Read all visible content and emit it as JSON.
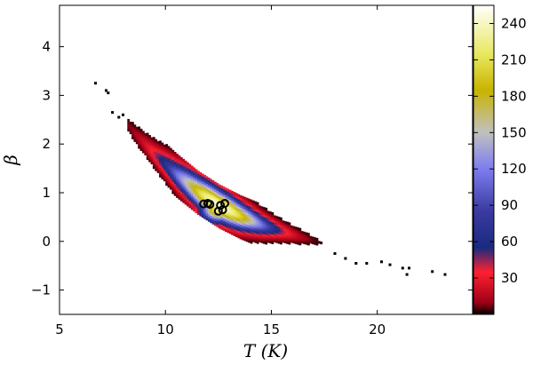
{
  "chart_data": {
    "type": "heatmap",
    "title": "",
    "xlabel": "T (K)",
    "ylabel": "β",
    "xlim": [
      5,
      24.5
    ],
    "ylim": [
      -1.5,
      4.85
    ],
    "xticks": [
      5,
      10,
      15,
      20
    ],
    "yticks": [
      -1,
      0,
      1,
      2,
      3,
      4
    ],
    "ytick_labels": [
      "−1",
      "0",
      "1",
      "2",
      "3",
      "4"
    ],
    "grid": false,
    "density_relation": {
      "description_of_ridge": "beta decreases with T along a curved band",
      "ridge_points": [
        {
          "T": 8.5,
          "beta": 2.2
        },
        {
          "T": 9.5,
          "beta": 1.75
        },
        {
          "T": 10.5,
          "beta": 1.35
        },
        {
          "T": 11.5,
          "beta": 1.0
        },
        {
          "T": 12.5,
          "beta": 0.72
        },
        {
          "T": 13.5,
          "beta": 0.5
        },
        {
          "T": 14.5,
          "beta": 0.32
        },
        {
          "T": 15.5,
          "beta": 0.18
        },
        {
          "T": 16.5,
          "beta": 0.05
        },
        {
          "T": 17.5,
          "beta": -0.08
        }
      ],
      "peak_counts_region": {
        "T": [
          11.8,
          13.2
        ],
        "beta": [
          0.4,
          0.9
        ],
        "max_count": 245
      }
    },
    "scatter_outliers": [
      {
        "T": 6.7,
        "beta": 3.25
      },
      {
        "T": 7.2,
        "beta": 3.1
      },
      {
        "T": 7.3,
        "beta": 3.05
      },
      {
        "T": 7.5,
        "beta": 2.65
      },
      {
        "T": 7.8,
        "beta": 2.55
      },
      {
        "T": 8.0,
        "beta": 2.6
      },
      {
        "T": 18.0,
        "beta": -0.25
      },
      {
        "T": 18.5,
        "beta": -0.35
      },
      {
        "T": 19.0,
        "beta": -0.45
      },
      {
        "T": 19.5,
        "beta": -0.45
      },
      {
        "T": 20.2,
        "beta": -0.42
      },
      {
        "T": 20.6,
        "beta": -0.48
      },
      {
        "T": 21.2,
        "beta": -0.55
      },
      {
        "T": 21.5,
        "beta": -0.55
      },
      {
        "T": 21.4,
        "beta": -0.68
      },
      {
        "T": 22.6,
        "beta": -0.62
      },
      {
        "T": 23.2,
        "beta": -0.68
      }
    ],
    "circle_markers": [
      {
        "T": 11.8,
        "beta": 0.77
      },
      {
        "T": 12.0,
        "beta": 0.78
      },
      {
        "T": 12.1,
        "beta": 0.76
      },
      {
        "T": 12.6,
        "beta": 0.74
      },
      {
        "T": 12.8,
        "beta": 0.78
      },
      {
        "T": 12.7,
        "beta": 0.65
      },
      {
        "T": 12.5,
        "beta": 0.62
      }
    ],
    "colorbar": {
      "ticks": [
        30,
        60,
        90,
        120,
        150,
        180,
        210,
        240
      ],
      "range": [
        0,
        255
      ],
      "colormap_stops": [
        {
          "v": 0,
          "color": "#000000"
        },
        {
          "v": 10,
          "color": "#a00018"
        },
        {
          "v": 35,
          "color": "#ff2030"
        },
        {
          "v": 55,
          "color": "#1a2a80"
        },
        {
          "v": 85,
          "color": "#3a3aa0"
        },
        {
          "v": 120,
          "color": "#7d7df0"
        },
        {
          "v": 150,
          "color": "#c0c0c0"
        },
        {
          "v": 185,
          "color": "#c8b400"
        },
        {
          "v": 215,
          "color": "#e8e860"
        },
        {
          "v": 255,
          "color": "#ffffff"
        }
      ]
    }
  }
}
